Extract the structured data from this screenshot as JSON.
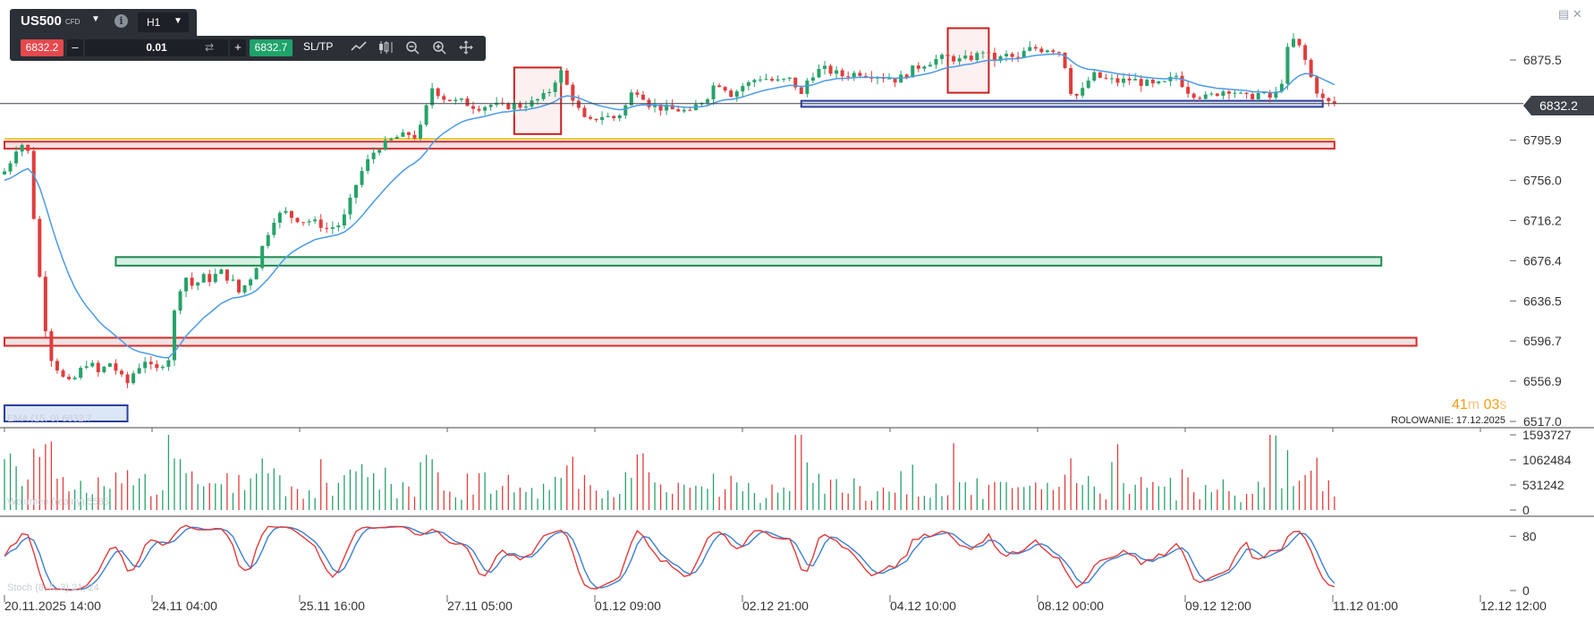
{
  "toolbar": {
    "symbol": "US500",
    "symbol_type": "CFD",
    "timeframe": "H1",
    "bid": "6832.2",
    "quantity": "0.01",
    "ask": "6832.7",
    "sltp_label": "SL/TP",
    "icons": [
      "chevron-down-icon",
      "info-icon",
      "swap-icon",
      "line-chart-icon",
      "candle-chart-icon",
      "zoom-out-icon",
      "zoom-in-icon",
      "move-icon"
    ]
  },
  "window_controls": [
    "minimize-icon",
    "close-icon"
  ],
  "current_price_label": "6832.2",
  "timer": {
    "minutes": "41",
    "minutes_unit": "m",
    "seconds": "03",
    "seconds_unit": "s"
  },
  "rollover": "ROLOWANIE: 17.12.2025",
  "volume_label": "Wolumen (realny) 5585",
  "stoch_label": "Stoch (8, 5, 3) 21, 24",
  "ema_label": "EMA (15, 0) 6832.7",
  "colors": {
    "bull": "#26a269",
    "bear": "#e03c3c",
    "ema": "#4a9be6",
    "stoch_k": "#e03c3c",
    "stoch_d": "#3b7fd3",
    "support_zone": "#1f8a52",
    "resistance_zone": "#d42b2b",
    "blue_zone": "#2c3e9c"
  },
  "chart_data": {
    "type": "candlestick",
    "symbol": "US500",
    "timeframe": "H1",
    "current_price": 6832.2,
    "y_ticks": [
      6875.5,
      6795.9,
      6756.0,
      6716.2,
      6676.4,
      6636.5,
      6596.7,
      6556.9,
      6517.0
    ],
    "y_tick_labels": [
      "6875.5",
      "6795.9",
      "6756.0",
      "6716.2",
      "6676.4",
      "6636.5",
      "6596.7",
      "6556.9",
      "6517.0"
    ],
    "x_tick_labels": [
      "20.11.2025 14:00",
      "24.11 04:00",
      "25.11 16:00",
      "27.11 05:00",
      "01.12 09:00",
      "02.12 21:00",
      "04.12 10:00",
      "08.12 00:00",
      "09.12 12:00",
      "11.12 01:00",
      "12.12 12:00"
    ],
    "price_path": [
      [
        0,
        6765
      ],
      [
        1,
        6775
      ],
      [
        2,
        6788
      ],
      [
        3,
        6792
      ],
      [
        4,
        6784
      ],
      [
        5,
        6720
      ],
      [
        6,
        6660
      ],
      [
        7,
        6610
      ],
      [
        8,
        6580
      ],
      [
        9,
        6570
      ],
      [
        10,
        6560
      ],
      [
        11,
        6555
      ],
      [
        12,
        6560
      ],
      [
        13,
        6568
      ],
      [
        14,
        6575
      ],
      [
        15,
        6572
      ],
      [
        16,
        6565
      ],
      [
        17,
        6570
      ],
      [
        18,
        6575
      ],
      [
        19,
        6568
      ],
      [
        20,
        6560
      ],
      [
        21,
        6555
      ],
      [
        22,
        6565
      ],
      [
        23,
        6572
      ],
      [
        24,
        6578
      ],
      [
        25,
        6570
      ],
      [
        26,
        6568
      ],
      [
        27,
        6575
      ],
      [
        28,
        6580
      ],
      [
        29,
        6625
      ],
      [
        30,
        6650
      ],
      [
        31,
        6660
      ],
      [
        32,
        6652
      ],
      [
        33,
        6655
      ],
      [
        34,
        6660
      ],
      [
        35,
        6658
      ],
      [
        36,
        6662
      ],
      [
        37,
        6665
      ],
      [
        38,
        6660
      ],
      [
        39,
        6655
      ],
      [
        40,
        6645
      ],
      [
        41,
        6652
      ],
      [
        42,
        6660
      ],
      [
        43,
        6672
      ],
      [
        44,
        6690
      ],
      [
        45,
        6705
      ],
      [
        46,
        6718
      ],
      [
        47,
        6722
      ],
      [
        48,
        6724
      ],
      [
        49,
        6720
      ],
      [
        50,
        6718
      ],
      [
        51,
        6716
      ],
      [
        52,
        6716
      ],
      [
        53,
        6714
      ],
      [
        54,
        6712
      ],
      [
        55,
        6708
      ],
      [
        56,
        6710
      ],
      [
        57,
        6712
      ],
      [
        58,
        6720
      ],
      [
        59,
        6735
      ],
      [
        60,
        6752
      ],
      [
        61,
        6765
      ],
      [
        62,
        6775
      ],
      [
        63,
        6784
      ],
      [
        64,
        6790
      ],
      [
        65,
        6792
      ],
      [
        66,
        6796
      ],
      [
        67,
        6799
      ],
      [
        68,
        6800
      ],
      [
        69,
        6802
      ],
      [
        70,
        6800
      ],
      [
        71,
        6808
      ],
      [
        72,
        6828
      ],
      [
        73,
        6848
      ],
      [
        74,
        6843
      ],
      [
        75,
        6838
      ],
      [
        76,
        6836
      ],
      [
        77,
        6834
      ],
      [
        78,
        6834
      ],
      [
        79,
        6832
      ],
      [
        80,
        6830
      ],
      [
        81,
        6829
      ],
      [
        82,
        6830
      ],
      [
        83,
        6831
      ],
      [
        84,
        6830
      ],
      [
        85,
        6829
      ],
      [
        86,
        6830
      ],
      [
        87,
        6831
      ],
      [
        88,
        6830
      ],
      [
        89,
        6832
      ],
      [
        90,
        6833
      ],
      [
        91,
        6836
      ],
      [
        92,
        6839
      ],
      [
        93,
        6845
      ],
      [
        94,
        6856
      ],
      [
        95,
        6863
      ],
      [
        96,
        6850
      ],
      [
        97,
        6838
      ],
      [
        98,
        6826
      ],
      [
        99,
        6816
      ],
      [
        100,
        6814
      ],
      [
        101,
        6818
      ],
      [
        102,
        6820
      ],
      [
        103,
        6819
      ],
      [
        104,
        6818
      ],
      [
        105,
        6822
      ],
      [
        106,
        6830
      ],
      [
        107,
        6842
      ],
      [
        108,
        6845
      ],
      [
        109,
        6840
      ],
      [
        110,
        6832
      ],
      [
        111,
        6830
      ],
      [
        112,
        6828
      ],
      [
        113,
        6827
      ],
      [
        114,
        6826
      ],
      [
        115,
        6826
      ],
      [
        116,
        6825
      ],
      [
        117,
        6822
      ],
      [
        118,
        6830
      ],
      [
        119,
        6835
      ],
      [
        120,
        6840
      ],
      [
        121,
        6850
      ],
      [
        122,
        6852
      ],
      [
        123,
        6848
      ],
      [
        124,
        6842
      ],
      [
        125,
        6845
      ],
      [
        126,
        6850
      ],
      [
        127,
        6852
      ],
      [
        128,
        6856
      ],
      [
        129,
        6858
      ],
      [
        130,
        6857
      ],
      [
        131,
        6855
      ],
      [
        132,
        6854
      ],
      [
        133,
        6855
      ],
      [
        134,
        6856
      ],
      [
        135,
        6850
      ],
      [
        136,
        6840
      ],
      [
        137,
        6855
      ],
      [
        138,
        6862
      ],
      [
        139,
        6865
      ],
      [
        140,
        6866
      ],
      [
        141,
        6864
      ],
      [
        142,
        6862
      ],
      [
        143,
        6860
      ],
      [
        144,
        6861
      ],
      [
        145,
        6862
      ],
      [
        146,
        6863
      ],
      [
        147,
        6862
      ],
      [
        148,
        6861
      ],
      [
        149,
        6860
      ],
      [
        150,
        6859
      ],
      [
        151,
        6858
      ],
      [
        152,
        6856
      ],
      [
        153,
        6858
      ],
      [
        154,
        6862
      ],
      [
        155,
        6866
      ],
      [
        156,
        6869
      ],
      [
        157,
        6872
      ],
      [
        158,
        6874
      ],
      [
        159,
        6876
      ],
      [
        160,
        6877
      ],
      [
        161,
        6878
      ],
      [
        162,
        6877
      ],
      [
        163,
        6875
      ],
      [
        164,
        6876
      ],
      [
        165,
        6878
      ],
      [
        166,
        6880
      ],
      [
        167,
        6885
      ],
      [
        168,
        6879
      ],
      [
        169,
        6876
      ],
      [
        170,
        6877
      ],
      [
        171,
        6880
      ],
      [
        172,
        6878
      ],
      [
        173,
        6876
      ],
      [
        174,
        6883
      ],
      [
        175,
        6886
      ],
      [
        176,
        6887
      ],
      [
        177,
        6886
      ],
      [
        178,
        6887
      ],
      [
        179,
        6886
      ],
      [
        180,
        6884
      ],
      [
        181,
        6870
      ],
      [
        182,
        6845
      ],
      [
        183,
        6840
      ],
      [
        184,
        6845
      ],
      [
        185,
        6855
      ],
      [
        186,
        6860
      ],
      [
        187,
        6858
      ],
      [
        188,
        6856
      ],
      [
        189,
        6855
      ],
      [
        190,
        6854
      ],
      [
        191,
        6855
      ],
      [
        192,
        6856
      ],
      [
        193,
        6855
      ],
      [
        194,
        6853
      ],
      [
        195,
        6852
      ],
      [
        196,
        6850
      ],
      [
        197,
        6851
      ],
      [
        198,
        6852
      ],
      [
        199,
        6856
      ],
      [
        200,
        6860
      ],
      [
        201,
        6852
      ],
      [
        202,
        6845
      ],
      [
        203,
        6842
      ],
      [
        204,
        6840
      ],
      [
        205,
        6838
      ],
      [
        206,
        6840
      ],
      [
        207,
        6843
      ],
      [
        208,
        6845
      ],
      [
        209,
        6846
      ],
      [
        210,
        6844
      ],
      [
        211,
        6840
      ],
      [
        212,
        6838
      ],
      [
        213,
        6840
      ],
      [
        214,
        6842
      ],
      [
        215,
        6840
      ],
      [
        216,
        6838
      ],
      [
        217,
        6842
      ],
      [
        218,
        6855
      ],
      [
        219,
        6885
      ],
      [
        220,
        6895
      ],
      [
        221,
        6888
      ],
      [
        222,
        6875
      ],
      [
        223,
        6858
      ],
      [
        224,
        6845
      ],
      [
        225,
        6836
      ],
      [
        226,
        6833
      ],
      [
        227,
        6832
      ]
    ],
    "ema": {
      "name": "EMA (15, 0)",
      "last": 6832.7
    },
    "zones": [
      {
        "kind": "resistance",
        "y_low": 6787.5,
        "y_high": 6794.5,
        "x_start": 0,
        "x_end": 227
      },
      {
        "kind": "support",
        "y_low": 6671.5,
        "y_high": 6680.0,
        "x_start": 19,
        "x_end": 235
      },
      {
        "kind": "resistance",
        "y_low": 6592.0,
        "y_high": 6600.0,
        "x_start": 0,
        "x_end": 241
      },
      {
        "kind": "blue",
        "y_low": 6829.0,
        "y_high": 6835.0,
        "x_start": 136,
        "x_end": 225
      },
      {
        "kind": "blue",
        "y_low": 6517.0,
        "y_high": 6533.0,
        "x_start": 0,
        "x_end": 21
      }
    ],
    "highlight_boxes": [
      {
        "x_start": 87,
        "x_end": 95,
        "y_low": 6802.0,
        "y_high": 6868.0
      },
      {
        "x_start": 161,
        "x_end": 168,
        "y_low": 6843.0,
        "y_high": 6907.0
      }
    ],
    "volume": {
      "name": "Wolumen (realny)",
      "last": 5585,
      "y_ticks": [
        0,
        531242,
        1062484,
        1593727
      ]
    },
    "stochastic": {
      "name": "Stoch (8, 5, 3)",
      "k": 21,
      "d": 24,
      "y_ticks": [
        0,
        80
      ]
    }
  }
}
